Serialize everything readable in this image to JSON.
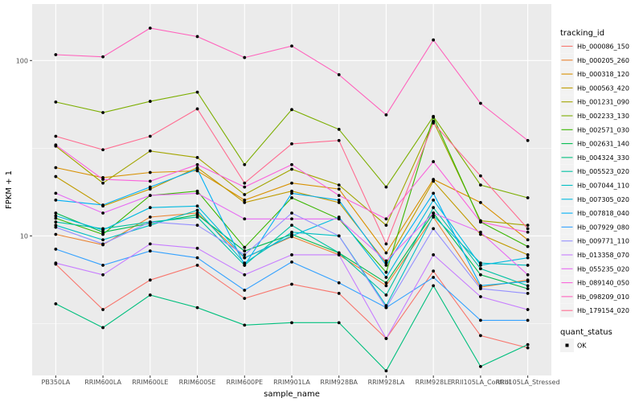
{
  "chart_data": {
    "type": "line",
    "xlabel": "sample_name",
    "ylabel": "FPKM + 1",
    "y_scale": "log10",
    "ylim": [
      1.6,
      210
    ],
    "y_ticks": [
      10,
      100
    ],
    "y_tick_labels": [
      "10",
      "100"
    ],
    "grid": true,
    "legend_position": "right",
    "categories": [
      "PB350LA",
      "RRIM600LA",
      "RRIM600LE",
      "RRIM600SE",
      "RRIM600PE",
      "RRIM901LA",
      "RRIM928BA",
      "RRIM928LA",
      "RRIM928LE",
      "RRII105LA_Control",
      "RRII105LA_Stressed"
    ],
    "legend_title": "tracking_id",
    "series": [
      {
        "name": "Hb_000086_150",
        "color": "#F8766D",
        "values": [
          6.9,
          3.8,
          5.6,
          6.8,
          4.4,
          5.3,
          4.7,
          2.6,
          6.3,
          2.7,
          2.3
        ]
      },
      {
        "name": "Hb_000205_260",
        "color": "#EA8331",
        "values": [
          10.2,
          8.9,
          12.8,
          13.5,
          7.5,
          9.9,
          7.8,
          5.2,
          12.8,
          5.1,
          5.6
        ]
      },
      {
        "name": "Hb_000318_120",
        "color": "#D89000",
        "values": [
          24.5,
          21.5,
          23.0,
          23.5,
          16.0,
          20.0,
          18.5,
          8.0,
          21.0,
          15.5,
          9.5
        ]
      },
      {
        "name": "Hb_000563_420",
        "color": "#C09B00",
        "values": [
          21.8,
          14.8,
          18.5,
          24.5,
          15.5,
          18.0,
          15.5,
          7.0,
          20.5,
          10.2,
          7.8
        ]
      },
      {
        "name": "Hb_001231_090",
        "color": "#A3A500",
        "values": [
          32.5,
          20.0,
          30.5,
          28.0,
          17.2,
          24.0,
          19.5,
          11.5,
          45.0,
          12.2,
          11.5
        ]
      },
      {
        "name": "Hb_002233_130",
        "color": "#7CAE00",
        "values": [
          58.0,
          50.5,
          58.5,
          66.0,
          25.5,
          52.5,
          40.5,
          19.0,
          48.0,
          19.5,
          16.5
        ]
      },
      {
        "name": "Hb_002571_030",
        "color": "#39B600",
        "values": [
          12.6,
          10.2,
          17.0,
          18.0,
          8.6,
          16.5,
          12.5,
          6.2,
          47.5,
          12.0,
          8.7
        ]
      },
      {
        "name": "Hb_002631_140",
        "color": "#00BB4E",
        "values": [
          13.5,
          10.5,
          11.8,
          13.2,
          8.2,
          10.2,
          8.0,
          5.4,
          13.5,
          6.0,
          5.0
        ]
      },
      {
        "name": "Hb_004324_330",
        "color": "#00BF7D",
        "values": [
          4.1,
          3.0,
          4.6,
          3.9,
          3.1,
          3.2,
          3.2,
          1.7,
          5.2,
          1.8,
          2.4
        ]
      },
      {
        "name": "Hb_005523_020",
        "color": "#00C1A3",
        "values": [
          12.0,
          11.0,
          12.0,
          12.8,
          6.8,
          11.5,
          8.0,
          4.6,
          14.5,
          6.5,
          5.2
        ]
      },
      {
        "name": "Hb_007044_110",
        "color": "#00BFC4",
        "values": [
          11.5,
          9.5,
          11.5,
          14.0,
          7.0,
          10.5,
          10.0,
          4.0,
          13.0,
          7.0,
          6.8
        ]
      },
      {
        "name": "Hb_007305_020",
        "color": "#00BAE0",
        "values": [
          13.0,
          10.8,
          14.5,
          14.8,
          7.5,
          10.0,
          12.8,
          5.8,
          16.0,
          6.8,
          7.5
        ]
      },
      {
        "name": "Hb_007818_040",
        "color": "#00B0F6",
        "values": [
          16.0,
          15.0,
          19.0,
          24.0,
          6.8,
          17.5,
          16.0,
          6.8,
          17.5,
          5.2,
          5.5
        ]
      },
      {
        "name": "Hb_007929_080",
        "color": "#35A2FF",
        "values": [
          8.4,
          6.8,
          8.2,
          7.5,
          4.9,
          7.1,
          5.4,
          3.9,
          5.8,
          3.3,
          3.3
        ]
      },
      {
        "name": "Hb_009771_110",
        "color": "#9590FF",
        "values": [
          11.2,
          9.0,
          12.0,
          11.5,
          7.8,
          13.5,
          10.0,
          3.9,
          11.0,
          5.0,
          4.7
        ]
      },
      {
        "name": "Hb_013358_070",
        "color": "#C77CFF",
        "values": [
          7.0,
          6.0,
          9.0,
          8.5,
          6.0,
          7.8,
          7.8,
          2.6,
          7.8,
          4.5,
          3.8
        ]
      },
      {
        "name": "Hb_055235_020",
        "color": "#E76BF3",
        "values": [
          17.5,
          13.5,
          17.0,
          17.5,
          12.5,
          12.5,
          12.5,
          7.2,
          13.5,
          10.5,
          6.0
        ]
      },
      {
        "name": "Hb_089140_050",
        "color": "#FA62DB",
        "values": [
          33.0,
          21.0,
          20.5,
          25.5,
          19.0,
          25.5,
          17.0,
          12.5,
          26.5,
          12.0,
          10.5
        ]
      },
      {
        "name": "Hb_098209_010",
        "color": "#FF62BC",
        "values": [
          108.0,
          105.0,
          153.0,
          137.0,
          104.0,
          121.0,
          83.0,
          49.0,
          131.0,
          57.0,
          35.0
        ]
      },
      {
        "name": "Hb_179154_020",
        "color": "#FF6C91",
        "values": [
          37.0,
          31.0,
          37.0,
          53.0,
          20.0,
          33.5,
          35.0,
          9.0,
          44.0,
          22.0,
          11.0
        ]
      }
    ],
    "legend2_title": "quant_status",
    "legend2_label": "OK",
    "panel_bg": "#EBEBEB",
    "grid_color": "#FFFFFF"
  }
}
